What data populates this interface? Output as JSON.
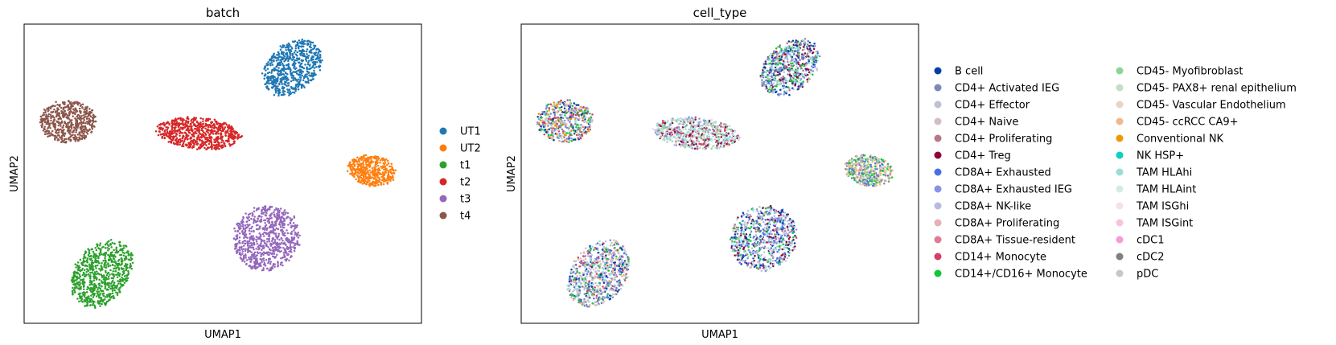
{
  "chart_data": [
    {
      "type": "scatter",
      "title": "batch",
      "xlabel": "UMAP1",
      "ylabel": "UMAP2",
      "xlim": [
        0,
        100
      ],
      "ylim": [
        0,
        100
      ],
      "grid": false,
      "legend_position": "right",
      "series": [
        {
          "name": "UT1",
          "color": "#1f77b4"
        },
        {
          "name": "UT2",
          "color": "#ff7f0e"
        },
        {
          "name": "t1",
          "color": "#2ca02c"
        },
        {
          "name": "t2",
          "color": "#d62728"
        },
        {
          "name": "t3",
          "color": "#9467bd"
        },
        {
          "name": "t4",
          "color": "#8c564b"
        }
      ],
      "clusters": [
        {
          "series": "UT1",
          "cx": 67.5,
          "cy": 85.5,
          "rx": 6.8,
          "ry": 10.5,
          "angle": -28,
          "n": 650
        },
        {
          "series": "UT2",
          "cx": 87.5,
          "cy": 51.0,
          "rx": 6.5,
          "ry": 5.2,
          "angle": -25,
          "n": 450
        },
        {
          "series": "t1",
          "cx": 19.5,
          "cy": 16.5,
          "rx": 7.5,
          "ry": 12.0,
          "angle": -20,
          "n": 750
        },
        {
          "series": "t2",
          "cx": 44.0,
          "cy": 63.5,
          "rx": 11.2,
          "ry": 5.4,
          "angle": -8,
          "n": 700
        },
        {
          "series": "t3",
          "cx": 61.0,
          "cy": 28.5,
          "rx": 8.7,
          "ry": 11.4,
          "angle": -6,
          "n": 750
        },
        {
          "series": "t4",
          "cx": 11.0,
          "cy": 67.5,
          "rx": 7.3,
          "ry": 7.4,
          "angle": -20,
          "n": 550
        }
      ]
    },
    {
      "type": "scatter",
      "title": "cell_type",
      "xlabel": "UMAP1",
      "ylabel": "UMAP2",
      "xlim": [
        0,
        100
      ],
      "ylim": [
        0,
        100
      ],
      "grid": false,
      "legend_position": "right",
      "series": [
        {
          "name": "B cell",
          "color": "#023fa5"
        },
        {
          "name": "CD4+ Activated IEG",
          "color": "#7d87b9"
        },
        {
          "name": "CD4+ Effector",
          "color": "#bec1d4"
        },
        {
          "name": "CD4+ Naive",
          "color": "#d6bcc0"
        },
        {
          "name": "CD4+ Proliferating",
          "color": "#bb7784"
        },
        {
          "name": "CD4+ Treg",
          "color": "#8e063b"
        },
        {
          "name": "CD8A+ Exhausted",
          "color": "#4a6fe3"
        },
        {
          "name": "CD8A+ Exhausted IEG",
          "color": "#8595e1"
        },
        {
          "name": "CD8A+ NK-like",
          "color": "#b5bbe3"
        },
        {
          "name": "CD8A+ Proliferating",
          "color": "#e6afb9"
        },
        {
          "name": "CD8A+ Tissue-resident",
          "color": "#e07b91"
        },
        {
          "name": "CD14+ Monocyte",
          "color": "#d33f6a"
        },
        {
          "name": "CD14+/CD16+ Monocyte",
          "color": "#11c638"
        },
        {
          "name": "CD45- Myofibroblast",
          "color": "#8dd593"
        },
        {
          "name": "CD45- PAX8+ renal epithelium",
          "color": "#c6dec7"
        },
        {
          "name": "CD45- Vascular Endothelium",
          "color": "#ead3c6"
        },
        {
          "name": "CD45- ccRCC CA9+",
          "color": "#f0b98d"
        },
        {
          "name": "Conventional NK",
          "color": "#ef9708"
        },
        {
          "name": "NK HSP+",
          "color": "#0fcfc0"
        },
        {
          "name": "TAM HLAhi",
          "color": "#9cded6"
        },
        {
          "name": "TAM HLAint",
          "color": "#d5eae7"
        },
        {
          "name": "TAM ISGhi",
          "color": "#f3e1eb"
        },
        {
          "name": "TAM ISGint",
          "color": "#f6c4e1"
        },
        {
          "name": "cDC1",
          "color": "#f79cd4"
        },
        {
          "name": "cDC2",
          "color": "#7f7f7f"
        },
        {
          "name": "pDC",
          "color": "#c7c7c7"
        }
      ],
      "clusters": [
        {
          "cx": 67.5,
          "cy": 85.5,
          "rx": 6.8,
          "ry": 10.5,
          "angle": -28,
          "n": 650,
          "mix": [
            "CD4+ Activated IEG",
            "CD4+ Effector",
            "CD8A+ Exhausted IEG",
            "CD14+/CD16+ Monocyte",
            "CD45- Myofibroblast",
            "CD4+ Treg",
            "CD8A+ Exhausted",
            "TAM HLAhi",
            "CD4+ Proliferating",
            "B cell"
          ]
        },
        {
          "cx": 87.5,
          "cy": 51.0,
          "rx": 6.5,
          "ry": 5.2,
          "angle": -25,
          "n": 450,
          "mix": [
            "CD45- ccRCC CA9+",
            "CD45- ccRCC CA9+",
            "CD14+/CD16+ Monocyte",
            "CD8A+ Exhausted",
            "CD45- Myofibroblast",
            "CD4+ Activated IEG",
            "CD45- Vascular Endothelium"
          ]
        },
        {
          "cx": 19.5,
          "cy": 16.5,
          "rx": 7.5,
          "ry": 12.0,
          "angle": -20,
          "n": 750,
          "mix": [
            "CD4+ Effector",
            "CD4+ Naive",
            "CD8A+ Exhausted",
            "CD14+/CD16+ Monocyte",
            "CD45- ccRCC CA9+",
            "CD4+ Activated IEG",
            "TAM HLAhi",
            "CD8A+ NK-like",
            "B cell",
            "CD14+ Monocyte"
          ]
        },
        {
          "cx": 44.0,
          "cy": 63.5,
          "rx": 11.2,
          "ry": 5.4,
          "angle": -8,
          "n": 700,
          "mix": [
            "CD45- PAX8+ renal epithelium",
            "TAM HLAint",
            "TAM HLAhi",
            "CD4+ Effector",
            "CD4+ Treg",
            "CD8A+ Exhausted IEG",
            "CD14+ Monocyte",
            "CD45- Myofibroblast"
          ]
        },
        {
          "cx": 61.0,
          "cy": 28.5,
          "rx": 8.7,
          "ry": 11.4,
          "angle": -6,
          "n": 750,
          "mix": [
            "CD8A+ Exhausted",
            "B cell",
            "CD8A+ Exhausted IEG",
            "CD4+ Proliferating",
            "CD4+ Treg",
            "TAM HLAhi",
            "CD14+/CD16+ Monocyte",
            "CD4+ Effector",
            "CD8A+ NK-like"
          ]
        },
        {
          "cx": 11.0,
          "cy": 67.5,
          "rx": 7.3,
          "ry": 7.4,
          "angle": -20,
          "n": 550,
          "mix": [
            "CD45- ccRCC CA9+",
            "Conventional NK",
            "CD14+/CD16+ Monocyte",
            "CD4+ Activated IEG",
            "CD8A+ Exhausted IEG",
            "CD4+ Effector",
            "B cell",
            "TAM HLAhi",
            "CD14+ Monocyte"
          ]
        }
      ]
    }
  ]
}
